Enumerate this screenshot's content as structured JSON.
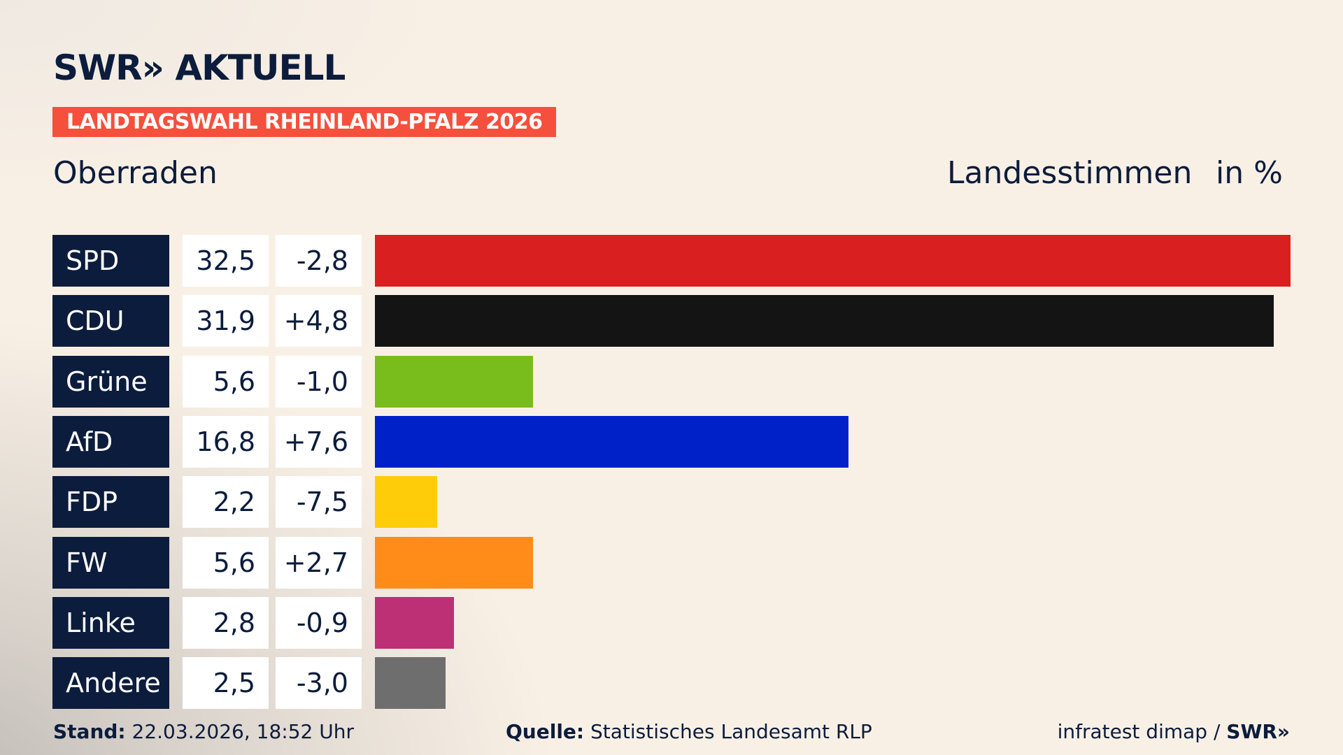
{
  "logo": "SWR» AKTUELL",
  "banner": "LANDTAGSWAHL RHEINLAND-PFALZ 2026",
  "location": "Oberraden",
  "header": {
    "label": "Landesstimmen",
    "unit": "in %"
  },
  "chart_data": {
    "type": "bar",
    "orientation": "horizontal",
    "categories": [
      "SPD",
      "CDU",
      "Grüne",
      "AfD",
      "FDP",
      "FW",
      "Linke",
      "Andere"
    ],
    "values": [
      32.5,
      31.9,
      5.6,
      16.8,
      2.2,
      5.6,
      2.8,
      2.5
    ],
    "value_labels": [
      "32,5",
      "31,9",
      "5,6",
      "16,8",
      "2,2",
      "5,6",
      "2,8",
      "2,5"
    ],
    "diff_labels": [
      "-2,8",
      "+4,8",
      "-1,0",
      "+7,6",
      "-7,5",
      "+2,7",
      "-0,9",
      "-3,0"
    ],
    "colors": [
      "#d91f1f",
      "#141414",
      "#79bd1c",
      "#0021c8",
      "#ffcc0a",
      "#ff8c19",
      "#bd3075",
      "#6e6e6e"
    ]
  },
  "footer": {
    "stand_label": "Stand:",
    "stand_value": "22.03.2026, 18:52 Uhr",
    "source_label": "Quelle:",
    "source_value": "Statistisches Landesamt RLP",
    "credit": "infratest dimap / ",
    "credit_logo": "SWR»"
  }
}
